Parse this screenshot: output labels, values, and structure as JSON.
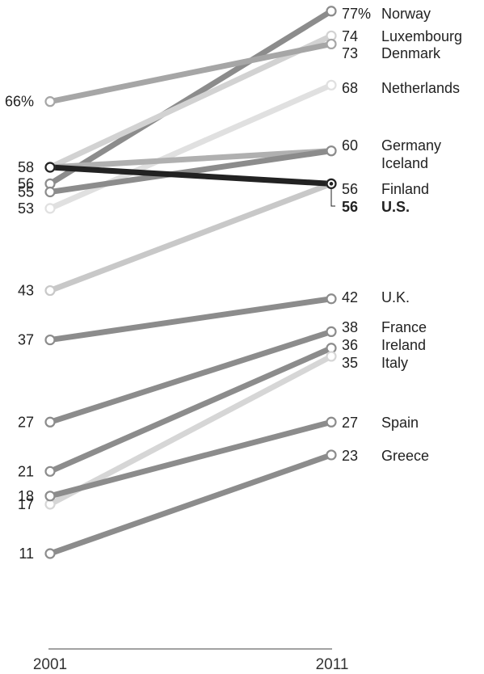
{
  "chart_data": {
    "type": "line",
    "x": [
      "2001",
      "2011"
    ],
    "ylim": [
      0,
      80
    ],
    "value_suffix_first": "%",
    "series": [
      {
        "name": "Norway",
        "values": [
          56,
          77
        ],
        "color": "#8c8c8c"
      },
      {
        "name": "Luxembourg",
        "values": [
          58,
          74
        ],
        "color": "#d2d2d2"
      },
      {
        "name": "Denmark",
        "values": [
          66,
          73
        ],
        "color": "#a6a6a6"
      },
      {
        "name": "Netherlands",
        "values": [
          53,
          68
        ],
        "color": "#e0e0e0"
      },
      {
        "name": "Germany",
        "values": [
          58,
          60
        ],
        "color": "#b0b0b0"
      },
      {
        "name": "Iceland",
        "values": [
          55,
          60
        ],
        "color": "#8c8c8c"
      },
      {
        "name": "Finland",
        "values": [
          43,
          56
        ],
        "color": "#c8c8c8"
      },
      {
        "name": "U.S.",
        "values": [
          58,
          56
        ],
        "color": "#222222",
        "highlight": true
      },
      {
        "name": "U.K.",
        "values": [
          37,
          42
        ],
        "color": "#8c8c8c"
      },
      {
        "name": "France",
        "values": [
          27,
          38
        ],
        "color": "#8c8c8c"
      },
      {
        "name": "Ireland",
        "values": [
          21,
          36
        ],
        "color": "#8c8c8c"
      },
      {
        "name": "Italy",
        "values": [
          17,
          35
        ],
        "color": "#d6d6d6"
      },
      {
        "name": "Spain",
        "values": [
          18,
          27
        ],
        "color": "#8c8c8c"
      },
      {
        "name": "Greece",
        "values": [
          11,
          23
        ],
        "color": "#8c8c8c"
      }
    ],
    "left_labels": [
      "66%",
      "58",
      "56",
      "55",
      "53",
      "43",
      "37",
      "27",
      "21",
      "18",
      "17",
      "11"
    ],
    "right_value_labels": [
      "77%",
      "74",
      "73",
      "68",
      "60",
      "56",
      "56",
      "42",
      "38",
      "36",
      "35",
      "27",
      "23"
    ]
  }
}
